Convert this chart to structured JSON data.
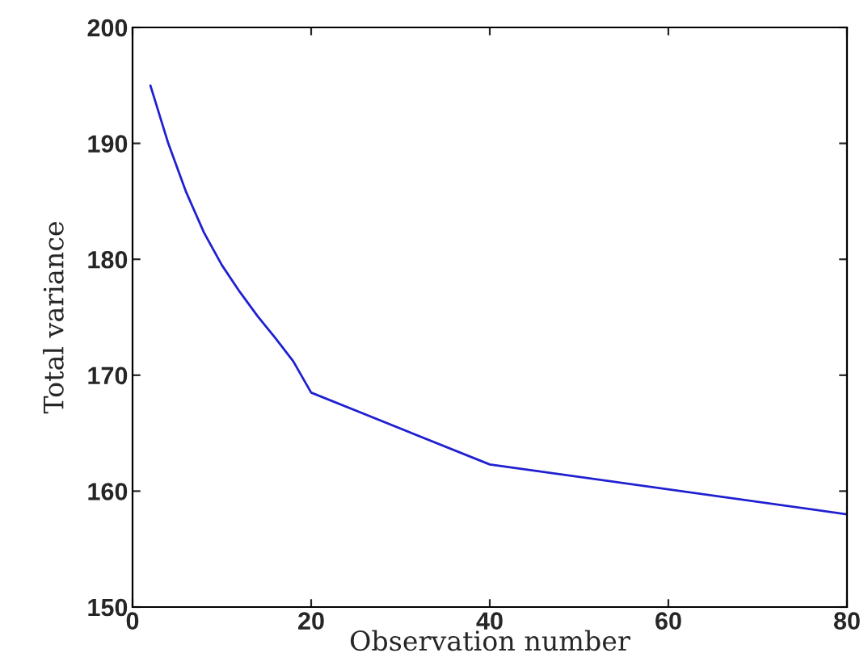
{
  "chart_data": {
    "type": "line",
    "xlabel": "Observation number",
    "ylabel": "Total variance",
    "x": [
      2,
      4,
      6,
      8,
      10,
      12,
      14,
      16,
      18,
      20,
      40,
      80
    ],
    "series": [
      {
        "color": "#2020d0",
        "values": [
          195,
          190,
          185.8,
          182.3,
          179.5,
          177.2,
          175.1,
          173.2,
          171.2,
          168.5,
          162.3,
          158
        ]
      }
    ],
    "xlim": [
      0,
      80
    ],
    "ylim": [
      150,
      200
    ],
    "xticks": [
      0,
      20,
      40,
      60,
      80
    ],
    "yticks": [
      150,
      160,
      170,
      180,
      190,
      200
    ],
    "grid": false
  }
}
